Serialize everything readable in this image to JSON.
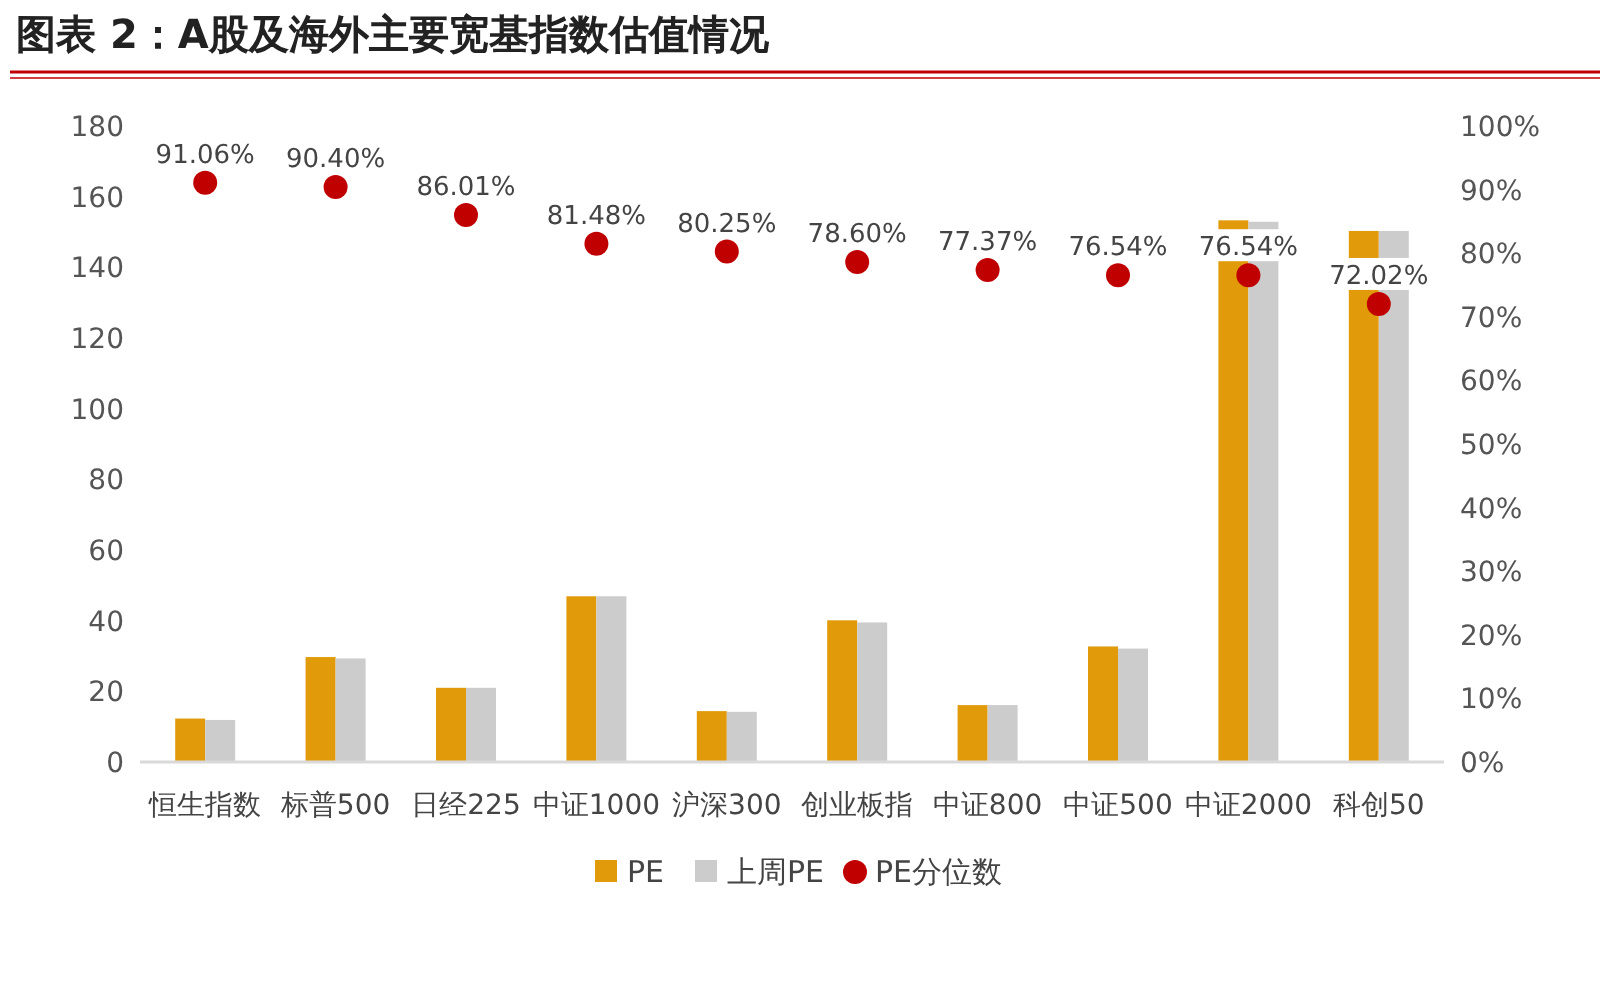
{
  "chart_data": {
    "type": "bar",
    "title": "图表 2：A股及海外主要宽基指数估值情况",
    "categories": [
      "恒生指数",
      "标普500",
      "日经225",
      "中证1000",
      "沪深300",
      "创业板指",
      "中证800",
      "中证500",
      "中证2000",
      "科创50"
    ],
    "series": [
      {
        "name": "PE",
        "color": "#e09a0a",
        "values": [
          12.3,
          29.7,
          21.0,
          46.9,
          14.4,
          40.1,
          16.1,
          32.7,
          153.3,
          150.3
        ]
      },
      {
        "name": "上周PE",
        "color": "#cccccc",
        "values": [
          11.9,
          29.3,
          21.0,
          46.9,
          14.2,
          39.5,
          16.1,
          32.1,
          152.9,
          150.3
        ]
      },
      {
        "name": "PE分位数",
        "type": "scatter",
        "axis": "y2",
        "marker": "circle",
        "color": "#c00000",
        "value_labels": [
          "91.06%",
          "90.40%",
          "86.01%",
          "81.48%",
          "80.25%",
          "78.60%",
          "77.37%",
          "76.54%",
          "76.54%",
          "72.02%"
        ],
        "values": [
          91.06,
          90.4,
          86.01,
          81.48,
          80.25,
          78.6,
          77.37,
          76.54,
          76.54,
          72.02
        ]
      }
    ],
    "ylim": [
      0,
      180
    ],
    "yticks": [
      0,
      20,
      40,
      60,
      80,
      100,
      120,
      140,
      160,
      180
    ],
    "y2lim": [
      0,
      100
    ],
    "y2ticks": [
      {
        "value": 0,
        "label": "0%"
      },
      {
        "value": 10,
        "label": "10%"
      },
      {
        "value": 20,
        "label": "20%"
      },
      {
        "value": 30,
        "label": "30%"
      },
      {
        "value": 40,
        "label": "40%"
      },
      {
        "value": 50,
        "label": "50%"
      },
      {
        "value": 60,
        "label": "60%"
      },
      {
        "value": 70,
        "label": "70%"
      },
      {
        "value": 80,
        "label": "80%"
      },
      {
        "value": 90,
        "label": "90%"
      },
      {
        "value": 100,
        "label": "100%"
      }
    ],
    "grid": false,
    "legend": "bottom"
  }
}
